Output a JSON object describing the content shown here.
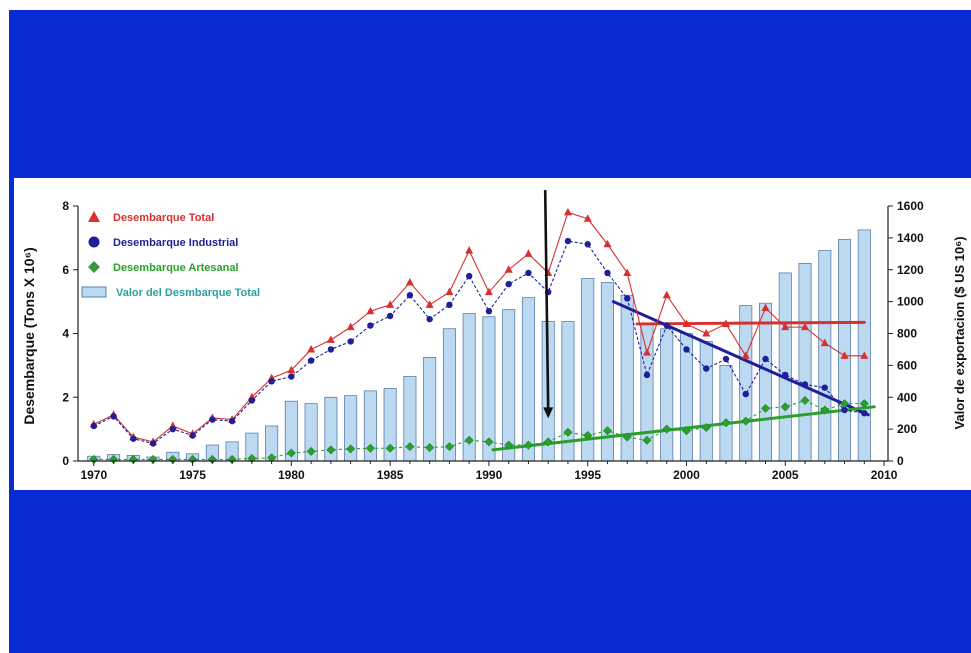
{
  "colors": {
    "slide_background": "#0a2bd1",
    "total": "#d83030",
    "industrial": "#1f1f9a",
    "artesanal": "#2aa02a",
    "bar_fill": "#bcd9f2",
    "bar_stroke": "#5a7ea8",
    "arrow": "#111111"
  },
  "chart_data": {
    "type": "bar",
    "title": "",
    "x": [
      1970,
      1971,
      1972,
      1973,
      1974,
      1975,
      1976,
      1977,
      1978,
      1979,
      1980,
      1981,
      1982,
      1983,
      1984,
      1985,
      1986,
      1987,
      1988,
      1989,
      1990,
      1991,
      1992,
      1993,
      1994,
      1995,
      1996,
      1997,
      1998,
      1999,
      2000,
      2001,
      2002,
      2003,
      2004,
      2005,
      2006,
      2007,
      2008,
      2009
    ],
    "xticks": [
      "1970",
      "1975",
      "1980",
      "1985",
      "1990",
      "1995",
      "2000",
      "2005",
      "2010"
    ],
    "xlim": [
      1969.2,
      2010.2
    ],
    "ylabel_left": "Desembarque (Tons X 10⁶)",
    "ylabel_right": "Valor de exportacion ($ US 10⁶)",
    "ylim_left": [
      0,
      8
    ],
    "yticks_left": [
      "0",
      "2",
      "4",
      "6",
      "8"
    ],
    "ylim_right": [
      0,
      1600
    ],
    "yticks_right": [
      "0",
      "200",
      "400",
      "600",
      "800",
      "1000",
      "1200",
      "1400",
      "1600"
    ],
    "grid": false,
    "legend_position": "top-left",
    "series": [
      {
        "name": "Desembarque Total",
        "kind": "line",
        "axis": "left",
        "marker": "triangle",
        "color": "#d83030",
        "values": [
          1.15,
          1.45,
          0.75,
          0.6,
          1.1,
          0.85,
          1.35,
          1.3,
          2.0,
          2.6,
          2.85,
          3.5,
          3.8,
          4.2,
          4.7,
          4.9,
          5.6,
          4.9,
          5.3,
          6.6,
          5.3,
          6.0,
          6.5,
          5.9,
          7.8,
          7.6,
          6.8,
          5.9,
          3.4,
          5.2,
          4.3,
          4.0,
          4.3,
          3.3,
          4.8,
          4.2,
          4.2,
          3.7,
          3.3,
          3.3
        ]
      },
      {
        "name": "Desembarque Industrial",
        "kind": "line",
        "axis": "left",
        "marker": "circle",
        "color": "#1f1f9a",
        "values": [
          1.1,
          1.4,
          0.7,
          0.55,
          1.0,
          0.8,
          1.3,
          1.25,
          1.9,
          2.5,
          2.65,
          3.15,
          3.5,
          3.75,
          4.25,
          4.55,
          5.2,
          4.45,
          4.9,
          5.8,
          4.7,
          5.55,
          5.9,
          5.3,
          6.9,
          6.8,
          5.9,
          5.1,
          2.7,
          4.25,
          3.5,
          2.9,
          3.2,
          2.1,
          3.2,
          2.7,
          2.4,
          2.3,
          1.6,
          1.5
        ]
      },
      {
        "name": "Desembarque Artesanal",
        "kind": "line",
        "axis": "left",
        "marker": "diamond",
        "color": "#2aa02a",
        "values": [
          0.05,
          0.05,
          0.05,
          0.05,
          0.05,
          0.05,
          0.05,
          0.05,
          0.08,
          0.1,
          0.25,
          0.3,
          0.35,
          0.38,
          0.4,
          0.4,
          0.45,
          0.42,
          0.45,
          0.65,
          0.6,
          0.5,
          0.5,
          0.6,
          0.9,
          0.8,
          0.95,
          0.75,
          0.65,
          1.0,
          0.95,
          1.05,
          1.2,
          1.25,
          1.65,
          1.7,
          1.9,
          1.6,
          1.8,
          1.8
        ]
      },
      {
        "name": "Valor del Desmbarque Total",
        "kind": "bar",
        "axis": "right",
        "color": "#bcd9f2",
        "values": [
          30,
          40,
          35,
          25,
          55,
          45,
          100,
          120,
          175,
          220,
          375,
          360,
          400,
          410,
          440,
          455,
          530,
          650,
          830,
          925,
          905,
          950,
          1025,
          875,
          875,
          1145,
          1120,
          1040,
          860,
          830,
          800,
          750,
          600,
          975,
          990,
          1180,
          1240,
          1320,
          1390,
          1450
        ]
      }
    ],
    "annotations": [
      {
        "kind": "arrow",
        "color": "#111111",
        "x": 1993,
        "y_from": 8.5,
        "y_to": 1.4
      },
      {
        "kind": "trend-line",
        "color": "#d83030",
        "x0": 1997.5,
        "y0": 4.3,
        "x1": 2009,
        "y1": 4.35
      },
      {
        "kind": "trend-line",
        "color": "#1f1f9a",
        "x0": 1996.3,
        "y0": 5.0,
        "x1": 2009.2,
        "y1": 1.45
      },
      {
        "kind": "trend-line",
        "color": "#2aa02a",
        "x0": 1990.2,
        "y0": 0.35,
        "x1": 2009.5,
        "y1": 1.7
      }
    ]
  }
}
